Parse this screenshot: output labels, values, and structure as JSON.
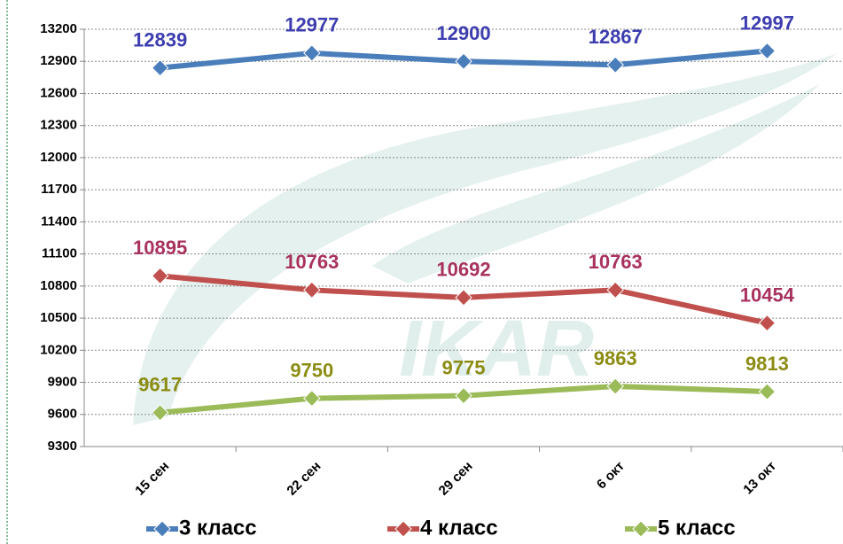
{
  "chart_data": {
    "type": "line",
    "watermark": "IKAR",
    "categories": [
      "15 сен",
      "22 сен",
      "29 сен",
      "6 окт",
      "13 окт"
    ],
    "series": [
      {
        "name": "3 класс",
        "color": "#4a7ebb",
        "label_color": "#3d3db0",
        "values": [
          12839,
          12977,
          12900,
          12867,
          12997
        ]
      },
      {
        "name": "4 класс",
        "color": "#c0504d",
        "label_color": "#a8325e",
        "values": [
          10895,
          10763,
          10692,
          10763,
          10454
        ]
      },
      {
        "name": "5 класс",
        "color": "#9bbb59",
        "label_color": "#8c8c14",
        "values": [
          9617,
          9750,
          9775,
          9863,
          9813
        ]
      }
    ],
    "ylim": [
      9300,
      13200
    ],
    "yticks": [
      9300,
      9600,
      9900,
      10200,
      10500,
      10800,
      11100,
      11400,
      11700,
      12000,
      12300,
      12600,
      12900,
      13200
    ],
    "grid": true,
    "legend": "bottom"
  }
}
